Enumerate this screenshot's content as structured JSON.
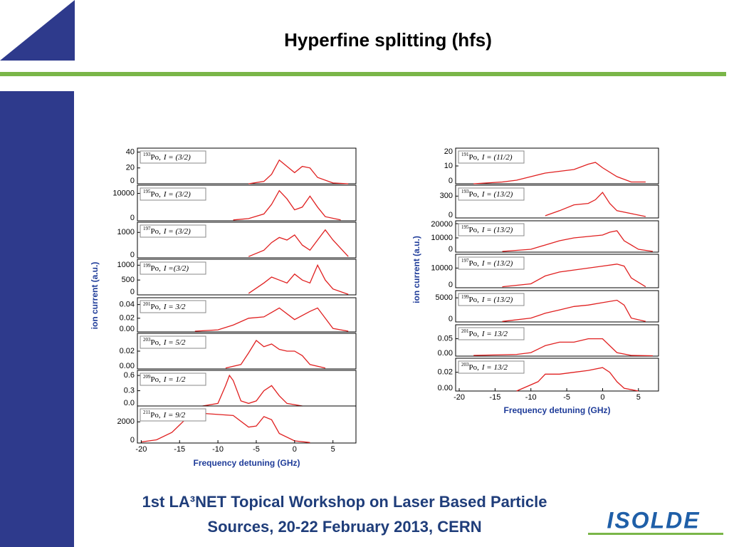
{
  "header": {
    "title": "Hyperfine splitting (hfs)"
  },
  "footer": {
    "line1": "1st LA³NET Topical Workshop on Laser Based Particle",
    "line2": "Sources, 20-22 February 2013,   CERN",
    "logo": "ISOLDE"
  },
  "chart_data": [
    {
      "type": "line",
      "ylabel": "ion current (a.u.)",
      "xlabel": "Frequency detuning (GHz)",
      "xlim": [
        -20.5,
        8
      ],
      "xticks": [
        -20,
        -15,
        -10,
        -5,
        0,
        5
      ],
      "color": "#e02020",
      "panels": [
        {
          "mass": "193",
          "element": "Po,",
          "spin": "I = (3/2)",
          "ylim": [
            0,
            45
          ],
          "yticks": [
            0,
            20,
            40
          ],
          "x": [
            -6,
            -4,
            -3,
            -2,
            -1,
            0,
            1,
            2,
            3,
            5,
            7
          ],
          "values": [
            0,
            3,
            12,
            30,
            22,
            14,
            22,
            20,
            8,
            1,
            0
          ]
        },
        {
          "mass": "195",
          "element": "Po,",
          "spin": "I = (3/2)",
          "ylim": [
            0,
            13000
          ],
          "yticks": [
            0,
            10000
          ],
          "x": [
            -8,
            -6,
            -4,
            -3,
            -2,
            -1,
            0,
            1,
            2,
            3,
            4,
            6
          ],
          "values": [
            300,
            800,
            2500,
            6000,
            11000,
            8000,
            4000,
            5000,
            9000,
            5000,
            1500,
            300
          ]
        },
        {
          "mass": "197",
          "element": "Po,",
          "spin": "I = (3/2)",
          "ylim": [
            0,
            1400
          ],
          "yticks": [
            0,
            1000
          ],
          "x": [
            -6,
            -4,
            -3,
            -2,
            -1,
            0,
            1,
            2,
            3,
            4,
            5,
            7
          ],
          "values": [
            50,
            300,
            600,
            800,
            700,
            900,
            500,
            300,
            700,
            1100,
            700,
            50
          ]
        },
        {
          "mass": "199",
          "element": "Po,",
          "spin": "I =(3/2)",
          "ylim": [
            0,
            1200
          ],
          "yticks": [
            0,
            500,
            1000
          ],
          "x": [
            -6,
            -4,
            -3,
            -2,
            -1,
            0,
            1,
            2,
            3,
            4,
            5,
            7
          ],
          "values": [
            50,
            400,
            600,
            500,
            400,
            700,
            500,
            400,
            1000,
            500,
            200,
            20
          ]
        },
        {
          "mass": "201",
          "element": "Po,",
          "spin": "I = 3/2",
          "ylim": [
            0,
            0.05
          ],
          "yticks": [
            {
              "value": 0,
              "label": "0.00"
            },
            0.02,
            0.04
          ],
          "x": [
            -13,
            -10,
            -8,
            -6,
            -4,
            -2,
            0,
            2,
            3,
            5,
            7
          ],
          "values": [
            0.001,
            0.003,
            0.01,
            0.02,
            0.022,
            0.035,
            0.018,
            0.03,
            0.035,
            0.005,
            0.001
          ]
        },
        {
          "mass": "203",
          "element": "Po,",
          "spin": "I = 5/2",
          "ylim": [
            0,
            0.04
          ],
          "yticks": [
            {
              "value": 0,
              "label": "0.00"
            },
            0.02
          ],
          "x": [
            -9,
            -7,
            -6,
            -5,
            -4,
            -3,
            -2,
            -1,
            0,
            1,
            2,
            4
          ],
          "values": [
            0.001,
            0.005,
            0.018,
            0.032,
            0.025,
            0.028,
            0.022,
            0.02,
            0.02,
            0.015,
            0.005,
            0.001
          ]
        },
        {
          "mass": "209",
          "element": "Po,",
          "spin": "I = 1/2",
          "ylim": [
            0,
            0.7
          ],
          "yticks": [
            {
              "value": 0,
              "label": "0.0"
            },
            0.3,
            0.6
          ],
          "x": [
            -12,
            -10,
            -9,
            -8.5,
            -8,
            -7,
            -6,
            -5,
            -4,
            -3,
            -2,
            -1,
            1
          ],
          "values": [
            0,
            0.05,
            0.4,
            0.6,
            0.5,
            0.1,
            0.05,
            0.1,
            0.3,
            0.4,
            0.2,
            0.05,
            0
          ]
        },
        {
          "mass": "211",
          "element": "Po,",
          "spin": "I = 9/2",
          "ylim": [
            0,
            3500
          ],
          "yticks": [
            0,
            2000
          ],
          "x": [
            -20,
            -18,
            -16,
            -14,
            -13,
            -12,
            -10,
            -8,
            -6,
            -5,
            -4,
            -3,
            -2,
            0,
            2
          ],
          "values": [
            100,
            300,
            1000,
            2400,
            2800,
            2800,
            2700,
            2600,
            1500,
            1600,
            2500,
            2200,
            900,
            200,
            50
          ]
        }
      ]
    },
    {
      "type": "line",
      "ylabel": "ion current (a.u.)",
      "xlabel": "Frequency detuning (GHz)",
      "xlim": [
        -20.5,
        7.8
      ],
      "xticks": [
        -20,
        -15,
        -10,
        -5,
        0,
        5
      ],
      "color": "#e02020",
      "panels": [
        {
          "mass": "191",
          "element": "Po,",
          "spin": "I = (11/2)",
          "ylim": [
            0,
            20
          ],
          "yticks": [
            0,
            10,
            20
          ],
          "x": [
            -18,
            -14,
            -12,
            -10,
            -8,
            -6,
            -4,
            -2,
            -1,
            0,
            2,
            4,
            6
          ],
          "values": [
            0,
            1,
            2,
            4,
            6,
            7,
            8,
            11,
            12,
            9,
            4,
            1,
            1
          ]
        },
        {
          "mass": "193",
          "element": "Po,",
          "spin": "I = (13/2)",
          "ylim": [
            0,
            450
          ],
          "yticks": [
            0,
            300
          ],
          "x": [
            -8,
            -6,
            -4,
            -2,
            -1,
            0,
            1,
            2,
            4,
            6
          ],
          "values": [
            30,
            100,
            180,
            200,
            250,
            350,
            200,
            100,
            60,
            20
          ]
        },
        {
          "mass": "195",
          "element": "Po,",
          "spin": "I = (13/2)",
          "ylim": [
            0,
            22000
          ],
          "yticks": [
            0,
            10000,
            20000
          ],
          "x": [
            -14,
            -10,
            -8,
            -6,
            -4,
            -2,
            0,
            1,
            2,
            3,
            5,
            7
          ],
          "values": [
            500,
            2000,
            5000,
            8000,
            10000,
            11000,
            12000,
            14000,
            15000,
            8000,
            2000,
            500
          ]
        },
        {
          "mass": "197",
          "element": "Po,",
          "spin": "I = (13/2)",
          "ylim": [
            0,
            17000
          ],
          "yticks": [
            0,
            10000
          ],
          "x": [
            -14,
            -10,
            -8,
            -6,
            -4,
            -2,
            0,
            2,
            3,
            4,
            6
          ],
          "values": [
            500,
            2000,
            6000,
            8000,
            9000,
            10000,
            11000,
            12000,
            11000,
            5000,
            500
          ]
        },
        {
          "mass": "199",
          "element": "Po,",
          "spin": "I = (13/2)",
          "ylim": [
            0,
            6500
          ],
          "yticks": [
            0,
            5000
          ],
          "x": [
            -14,
            -10,
            -8,
            -6,
            -4,
            -2,
            0,
            2,
            3,
            4,
            6
          ],
          "values": [
            100,
            800,
            1800,
            2500,
            3200,
            3500,
            4000,
            4500,
            3500,
            800,
            100
          ]
        },
        {
          "mass": "201",
          "element": "Po,",
          "spin": "I = 13/2",
          "ylim": [
            0,
            0.09
          ],
          "yticks": [
            {
              "value": 0,
              "label": "0.00"
            },
            0.05
          ],
          "x": [
            -18,
            -12,
            -10,
            -8,
            -6,
            -4,
            -2,
            0,
            2,
            4,
            7
          ],
          "values": [
            0.002,
            0.005,
            0.01,
            0.03,
            0.04,
            0.04,
            0.05,
            0.05,
            0.01,
            0.002,
            0.001
          ]
        },
        {
          "mass": "203",
          "element": "Po,",
          "spin": "I = 13/2",
          "ylim": [
            0,
            0.035
          ],
          "yticks": [
            {
              "value": 0,
              "label": "0.00"
            },
            0.02
          ],
          "x": [
            -12,
            -9,
            -8,
            -6,
            -4,
            -2,
            0,
            1,
            2,
            3,
            5
          ],
          "values": [
            0,
            0.01,
            0.018,
            0.018,
            0.02,
            0.022,
            0.025,
            0.02,
            0.01,
            0.003,
            0
          ]
        }
      ]
    }
  ]
}
